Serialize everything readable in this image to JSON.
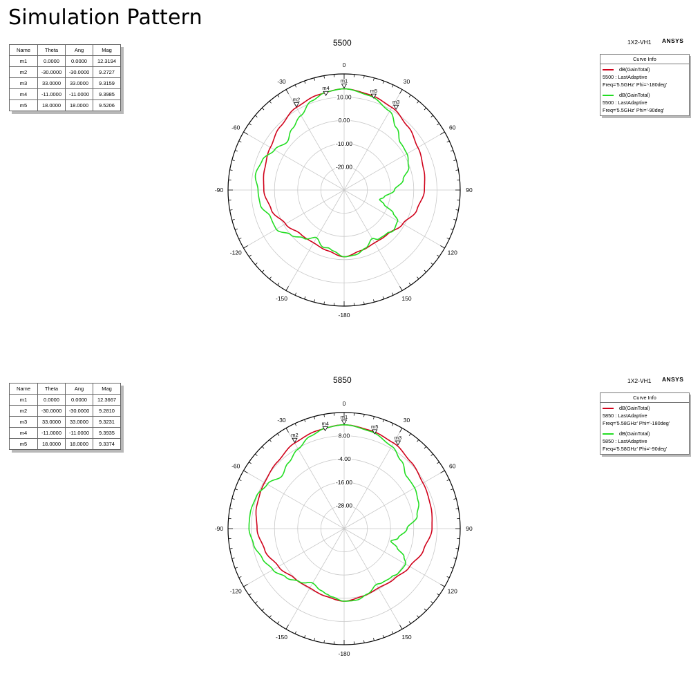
{
  "page_title": "Simulation Pattern",
  "colors": {
    "curve1": "#d0021b",
    "curve2": "#22dd22",
    "grid": "#c8c8c8",
    "axis": "#000000"
  },
  "chart_data": [
    {
      "type": "polar-line",
      "title": "5500",
      "project_label": "1X2-VH1",
      "brand": "ANSYS",
      "angle_ticks": [
        "0",
        "30",
        "60",
        "90",
        "120",
        "150",
        "-180",
        "-150",
        "-120",
        "-90",
        "-60",
        "-30"
      ],
      "radial_labels": [
        "10.00",
        "0.00",
        "-10.00",
        "-20.00"
      ],
      "radial_range": [
        -40,
        20
      ],
      "curve_info": {
        "title": "Curve Info",
        "entries": [
          {
            "quantity": "dB(GainTotal)",
            "line1": "5500 : LastAdaptive",
            "line2": "Freq='5.5GHz' Phi='-180deg'"
          },
          {
            "quantity": "dB(GainTotal)",
            "line1": "5500 : LastAdaptive",
            "line2": "Freq='5.5GHz' Phi='-90deg'"
          }
        ]
      },
      "markers_table": {
        "headers": [
          "Name",
          "Theta",
          "Ang",
          "Mag"
        ],
        "rows": [
          [
            "m1",
            "0.0000",
            "0.0000",
            "12.3194"
          ],
          [
            "m2",
            "-30.0000",
            "-30.0000",
            "9.2727"
          ],
          [
            "m3",
            "33.0000",
            "33.0000",
            "9.3159"
          ],
          [
            "m4",
            "-11.0000",
            "-11.0000",
            "9.3985"
          ],
          [
            "m5",
            "18.0000",
            "18.0000",
            "9.5206"
          ]
        ]
      },
      "markers": [
        {
          "name": "m1",
          "theta": 0,
          "mag": 12.3194
        },
        {
          "name": "m2",
          "theta": -30,
          "mag": 9.2727
        },
        {
          "name": "m3",
          "theta": 33,
          "mag": 9.3159
        },
        {
          "name": "m4",
          "theta": -11,
          "mag": 9.3985
        },
        {
          "name": "m5",
          "theta": 18,
          "mag": 9.5206
        }
      ],
      "series": [
        {
          "theta": [
            0,
            15,
            30,
            45,
            60,
            75,
            90,
            105,
            120,
            135,
            150,
            165,
            180,
            195,
            210,
            225,
            240,
            255,
            270,
            285,
            300,
            315,
            330,
            345,
            360
          ],
          "values": [
            12.3,
            11.0,
            9.3,
            6.5,
            4.0,
            2.5,
            1.5,
            -1.0,
            -5.0,
            -8.0,
            -8.5,
            -7.5,
            -5.5,
            -7.5,
            -8.5,
            -8.0,
            -5.0,
            -1.0,
            1.5,
            2.5,
            4.0,
            6.5,
            9.3,
            11.0,
            12.3
          ]
        },
        {
          "theta": [
            0,
            15,
            30,
            40,
            50,
            60,
            70,
            80,
            90,
            100,
            105,
            110,
            115,
            120,
            130,
            135,
            145,
            150,
            160,
            170,
            180,
            190,
            195,
            200,
            210,
            220,
            230,
            240,
            250,
            260,
            270,
            280,
            290,
            300,
            310,
            320,
            330,
            340,
            350,
            360
          ],
          "values": [
            12.3,
            10.5,
            7.0,
            2.0,
            -2.0,
            -2.5,
            -4.5,
            -9.0,
            -14.0,
            -19.0,
            -21.0,
            -18.0,
            -12.0,
            -8.0,
            -7.0,
            -8.5,
            -9.0,
            -11.0,
            -8.0,
            -6.0,
            -5.5,
            -8.0,
            -9.0,
            -8.5,
            -11.5,
            -7.5,
            -4.0,
            0.5,
            0.5,
            4.0,
            4.5,
            6.5,
            5.0,
            1.5,
            -1.5,
            1.5,
            4.5,
            9.0,
            11.5,
            12.3
          ]
        }
      ]
    },
    {
      "type": "polar-line",
      "title": "5850",
      "project_label": "1X2-VH1",
      "brand": "ANSYS",
      "angle_ticks": [
        "0",
        "30",
        "60",
        "90",
        "120",
        "150",
        "-180",
        "-150",
        "-120",
        "-90",
        "-60",
        "-30"
      ],
      "radial_labels": [
        "8.00",
        "-4.00",
        "-16.00",
        "-28.00"
      ],
      "radial_range": [
        -52,
        20
      ],
      "curve_info": {
        "title": "Curve Info",
        "entries": [
          {
            "quantity": "dB(GainTotal)",
            "line1": "5850 : LastAdaptive",
            "line2": "Freq='5.58GHz' Phi='-180deg'"
          },
          {
            "quantity": "dB(GainTotal)",
            "line1": "5850 : LastAdaptive",
            "line2": "Freq='5.58GHz' Phi='-90deg'"
          }
        ]
      },
      "markers_table": {
        "headers": [
          "Name",
          "Theta",
          "Ang",
          "Mag"
        ],
        "rows": [
          [
            "m1",
            "0.0000",
            "0.0000",
            "12.3667"
          ],
          [
            "m2",
            "-30.0000",
            "-30.0000",
            "9.2810"
          ],
          [
            "m3",
            "33.0000",
            "33.0000",
            "9.3231"
          ],
          [
            "m4",
            "-11.0000",
            "-11.0000",
            "9.3935"
          ],
          [
            "m5",
            "18.0000",
            "18.0000",
            "9.3374"
          ]
        ]
      },
      "markers": [
        {
          "name": "m1",
          "theta": 0,
          "mag": 12.3667
        },
        {
          "name": "m2",
          "theta": -30,
          "mag": 9.281
        },
        {
          "name": "m3",
          "theta": 33,
          "mag": 9.3231
        },
        {
          "name": "m4",
          "theta": -11,
          "mag": 9.3935
        },
        {
          "name": "m5",
          "theta": 18,
          "mag": 9.3374
        }
      ],
      "series": [
        {
          "theta": [
            0,
            15,
            30,
            45,
            60,
            75,
            90,
            105,
            120,
            135,
            150,
            165,
            180,
            195,
            210,
            225,
            240,
            255,
            270,
            285,
            300,
            315,
            330,
            345,
            360
          ],
          "values": [
            12.4,
            11.0,
            9.3,
            6.5,
            4.5,
            3.5,
            2.5,
            -1.0,
            -5.0,
            -8.0,
            -9.5,
            -8.5,
            -7.0,
            -8.5,
            -9.5,
            -8.5,
            -5.0,
            -1.0,
            2.0,
            4.0,
            5.0,
            6.5,
            9.3,
            11.0,
            12.4
          ]
        },
        {
          "theta": [
            0,
            15,
            30,
            40,
            50,
            60,
            70,
            80,
            90,
            100,
            105,
            110,
            115,
            120,
            130,
            135,
            145,
            150,
            160,
            170,
            180,
            190,
            195,
            200,
            210,
            220,
            230,
            240,
            250,
            260,
            270,
            280,
            290,
            300,
            310,
            320,
            330,
            340,
            350,
            360
          ],
          "values": [
            12.4,
            10.5,
            7.0,
            3.0,
            -1.5,
            -1.5,
            -3.0,
            -6.0,
            -13.0,
            -18.0,
            -22.0,
            -17.0,
            -11.0,
            -8.0,
            -8.5,
            -10.0,
            -11.0,
            -12.0,
            -9.0,
            -7.0,
            -7.0,
            -9.0,
            -10.0,
            -11.0,
            -13.0,
            -9.0,
            -5.0,
            -1.0,
            2.0,
            5.0,
            7.0,
            7.0,
            6.0,
            3.0,
            -1.5,
            1.5,
            5.0,
            9.0,
            11.5,
            12.4
          ]
        }
      ]
    }
  ]
}
